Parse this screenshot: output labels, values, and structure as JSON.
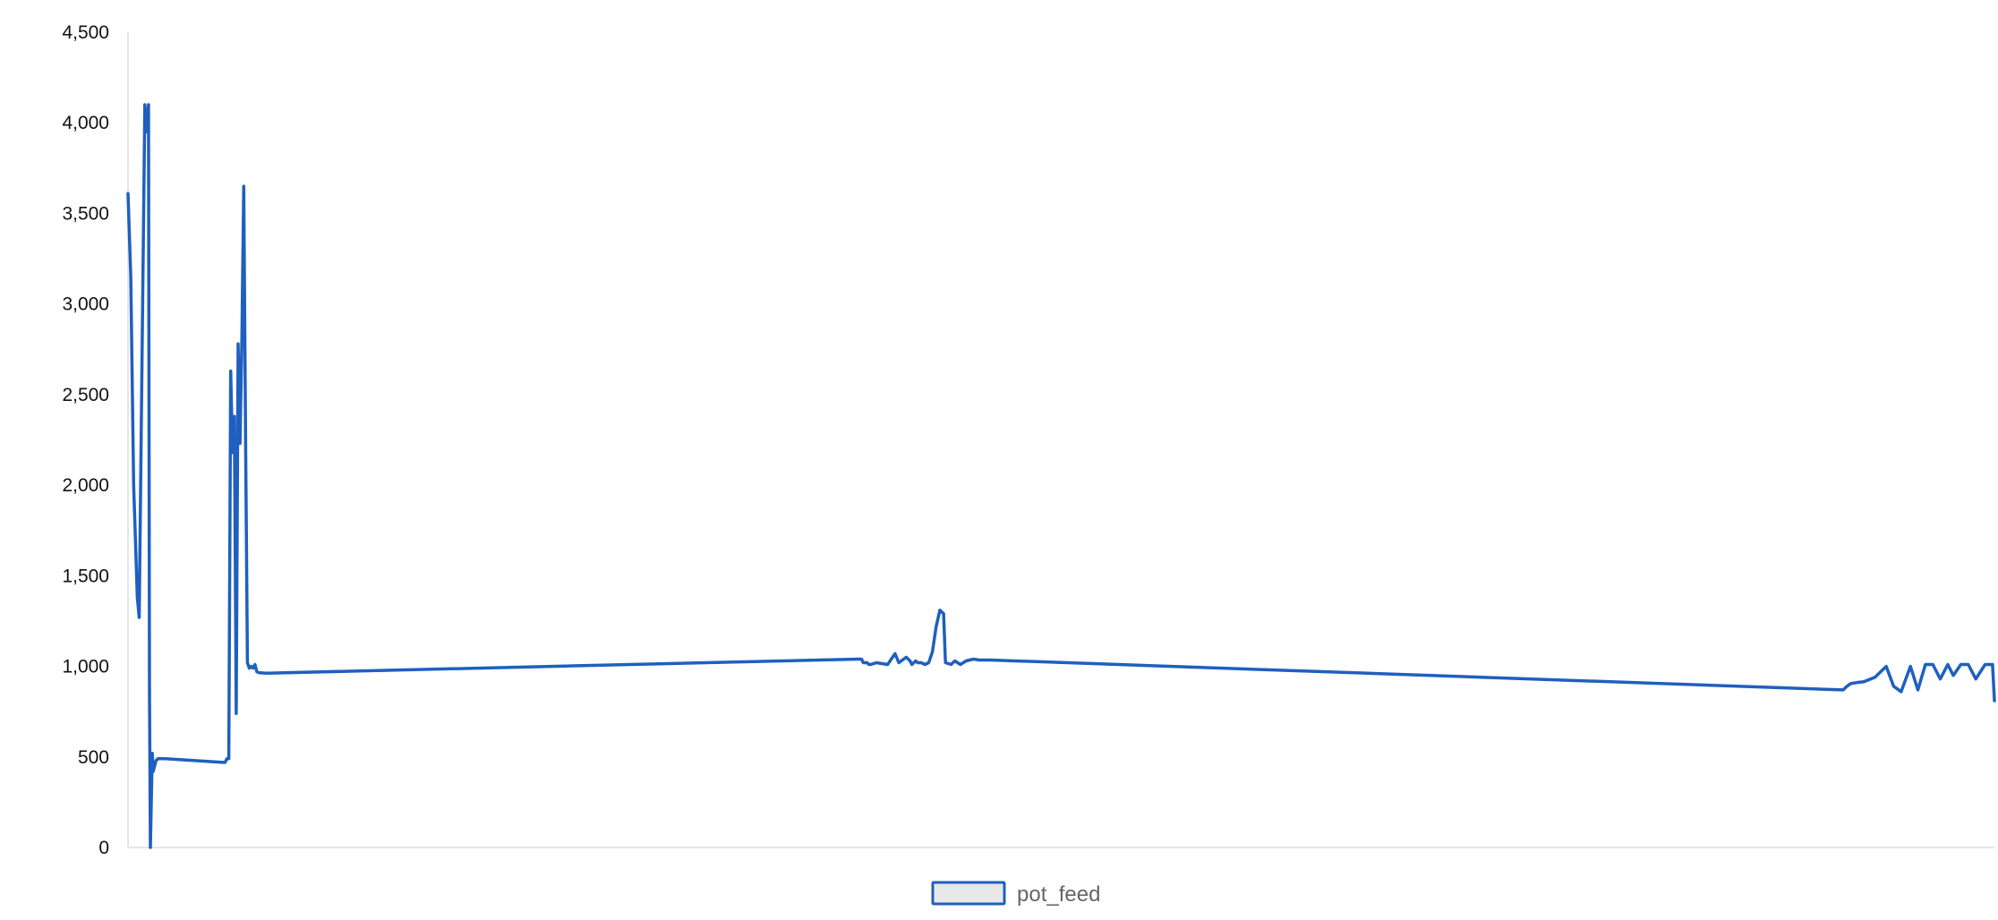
{
  "chart_data": {
    "type": "line",
    "title": "",
    "xlabel": "",
    "ylabel": "",
    "ylim": [
      0,
      4500
    ],
    "yticks": [
      {
        "value": 0,
        "label": "0"
      },
      {
        "value": 500,
        "label": "500"
      },
      {
        "value": 1000,
        "label": "1,000"
      },
      {
        "value": 1500,
        "label": "1,500"
      },
      {
        "value": 2000,
        "label": "2,000"
      },
      {
        "value": 2500,
        "label": "2,500"
      },
      {
        "value": 3000,
        "label": "3,000"
      },
      {
        "value": 3500,
        "label": "3,500"
      },
      {
        "value": 4000,
        "label": "4,000"
      },
      {
        "value": 4500,
        "label": "4,500"
      }
    ],
    "xlim": [
      0,
      1000
    ],
    "x_tick_labels_shown": false,
    "grid": false,
    "legend": {
      "position": "bottom-center"
    },
    "series": [
      {
        "name": "pot_feed",
        "color": "#1f5fbf",
        "x": [
          0,
          1.5,
          3,
          5,
          6,
          9,
          10,
          11,
          11.5,
          12,
          13,
          13.5,
          15,
          16,
          18,
          20,
          51,
          52,
          53,
          54,
          55,
          56,
          57,
          58,
          59,
          60,
          61,
          62,
          63,
          64,
          65,
          66,
          67,
          68,
          69,
          70,
          74,
          391,
          393,
          394,
          395,
          396,
          397,
          398,
          401,
          407,
          411,
          413,
          417,
          419,
          420,
          421,
          422,
          423,
          425,
          427,
          429,
          431,
          433,
          435,
          437,
          438,
          441,
          443,
          446,
          449,
          451,
          453,
          456,
          458,
          460,
          462,
          919,
          921,
          923,
          926,
          930,
          936,
          942,
          946,
          950,
          955,
          959,
          963,
          967,
          971,
          975,
          978,
          982,
          986,
          990,
          995,
          999,
          1000
        ],
        "values": [
          3610,
          3150,
          2000,
          1380,
          1270,
          4100,
          3950,
          4100,
          850,
          0,
          520,
          420,
          480,
          490,
          490,
          490,
          470,
          470,
          490,
          490,
          2630,
          2180,
          2380,
          740,
          2780,
          2230,
          2800,
          3650,
          2220,
          1020,
          990,
          1000,
          990,
          1010,
          970,
          965,
          962,
          1040,
          1040,
          1020,
          1020,
          1020,
          1010,
          1010,
          1020,
          1010,
          1070,
          1020,
          1050,
          1030,
          1010,
          1020,
          1030,
          1020,
          1020,
          1010,
          1020,
          1080,
          1220,
          1310,
          1290,
          1020,
          1010,
          1030,
          1010,
          1030,
          1035,
          1040,
          1035,
          1035,
          1035,
          1035,
          870,
          890,
          905,
          910,
          915,
          940,
          1000,
          890,
          860,
          1000,
          870,
          1010,
          1010,
          930,
          1010,
          950,
          1010,
          1010,
          930,
          1010,
          1010,
          810
        ]
      }
    ]
  }
}
